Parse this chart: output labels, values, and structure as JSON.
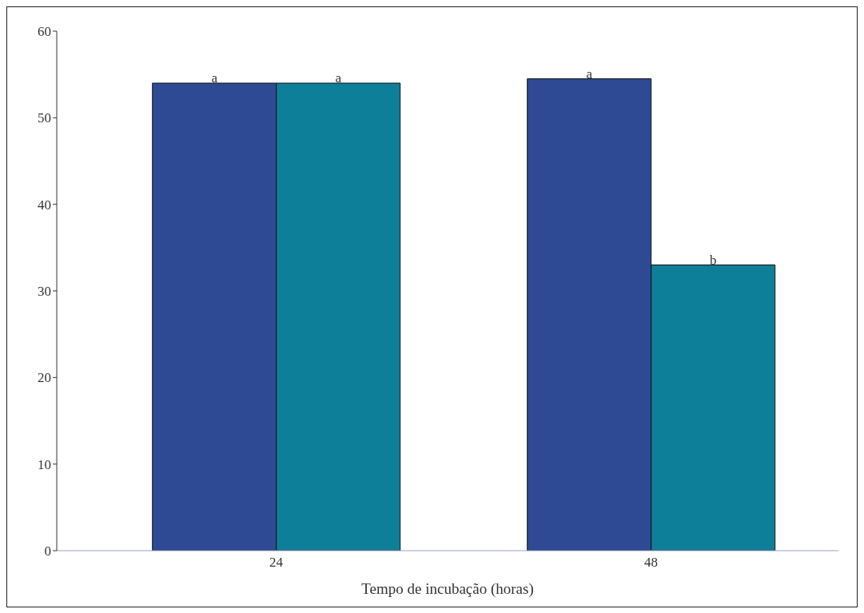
{
  "chart_data": {
    "type": "bar",
    "xlabel": "Tempo de incubação (horas)",
    "categories": [
      "24",
      "48"
    ],
    "series": [
      {
        "color": "#2e4a94",
        "values": [
          54,
          54.5
        ]
      },
      {
        "color": "#0e7f99",
        "values": [
          54,
          33
        ]
      }
    ],
    "ylim": [
      0,
      60
    ],
    "yticks": [
      0,
      10,
      20,
      30,
      40,
      50,
      60
    ],
    "grid": false,
    "legend": false,
    "annotations": [
      "a",
      "a",
      "a",
      "b"
    ]
  }
}
